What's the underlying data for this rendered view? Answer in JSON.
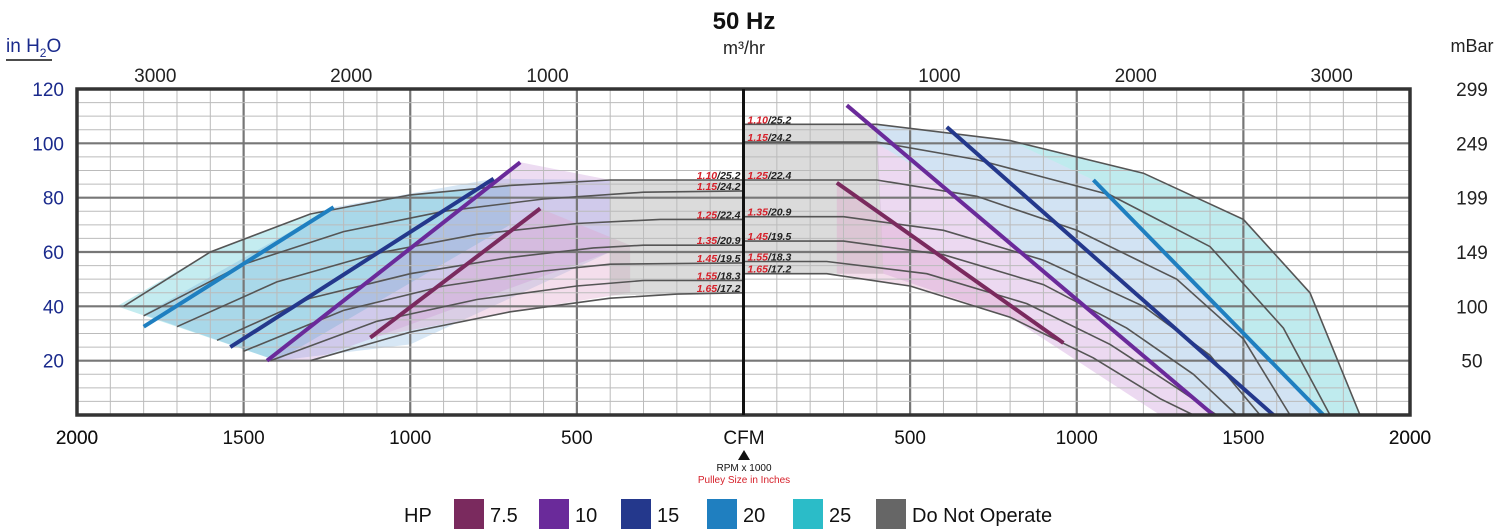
{
  "chart_data": {
    "type": "line",
    "title": "50 Hz",
    "top_axis_label": "m³/hr",
    "left_axis_label": {
      "main": "in H",
      "sub": "2",
      "tail": "O"
    },
    "right_axis_label": "mBar",
    "center_label": "CFM",
    "rpm_label": "RPM x 1000",
    "pulley_label": "Pulley Size in Inches",
    "bottom_ticks": [
      {
        "cfm": -2000,
        "label": "2000"
      },
      {
        "cfm": -1500,
        "label": "1500"
      },
      {
        "cfm": -1000,
        "label": "1000"
      },
      {
        "cfm": -500,
        "label": "500"
      },
      {
        "cfm": 500,
        "label": "500"
      },
      {
        "cfm": 1000,
        "label": "1000"
      },
      {
        "cfm": 1500,
        "label": "1500"
      },
      {
        "cfm": 2000,
        "label": "2000"
      }
    ],
    "top_ticks": [
      {
        "cfm": -1765,
        "label": "3000"
      },
      {
        "cfm": -1177,
        "label": "2000"
      },
      {
        "cfm": -588,
        "label": "1000"
      },
      {
        "cfm": 588,
        "label": "1000"
      },
      {
        "cfm": 1177,
        "label": "2000"
      },
      {
        "cfm": 1765,
        "label": "3000"
      }
    ],
    "left_ticks": [
      20,
      40,
      60,
      80,
      100,
      120
    ],
    "right_ticks": [
      {
        "in_h2o": 20,
        "label": "50"
      },
      {
        "in_h2o": 40,
        "label": "100"
      },
      {
        "in_h2o": 60,
        "label": "149"
      },
      {
        "in_h2o": 80,
        "label": "199"
      },
      {
        "in_h2o": 100,
        "label": "249"
      },
      {
        "in_h2o": 120,
        "label": "299"
      }
    ],
    "xlim": [
      -2000,
      2000
    ],
    "ylim": [
      0,
      120
    ],
    "grid": true,
    "legend_title": "HP",
    "legend": [
      {
        "label": "7.5",
        "color": "#7a2a5e"
      },
      {
        "label": "10",
        "color": "#6a2a9a"
      },
      {
        "label": "15",
        "color": "#24388c"
      },
      {
        "label": "20",
        "color": "#1f7fc0"
      },
      {
        "label": "25",
        "color": "#2bbcc8"
      },
      {
        "label": "Do Not Operate",
        "color": "#666666"
      }
    ],
    "left_labels": [
      {
        "pulley": "1.10",
        "rpm": "25.2",
        "y": 86.5
      },
      {
        "pulley": "1.15",
        "rpm": "24.2",
        "y": 82.5
      },
      {
        "pulley": "1.25",
        "rpm": "22.4",
        "y": 72.0
      },
      {
        "pulley": "1.35",
        "rpm": "20.9",
        "y": 62.5
      },
      {
        "pulley": "1.45",
        "rpm": "19.5",
        "y": 56.0
      },
      {
        "pulley": "1.55",
        "rpm": "18.3",
        "y": 49.5
      },
      {
        "pulley": "1.65",
        "rpm": "17.2",
        "y": 45.0
      }
    ],
    "right_labels": [
      {
        "pulley": "1.10",
        "rpm": "25.2",
        "y": 107.0
      },
      {
        "pulley": "1.15",
        "rpm": "24.2",
        "y": 100.5
      },
      {
        "pulley": "1.25",
        "rpm": "22.4",
        "y": 86.5
      },
      {
        "pulley": "1.35",
        "rpm": "20.9",
        "y": 73.0
      },
      {
        "pulley": "1.45",
        "rpm": "19.5",
        "y": 64.0
      },
      {
        "pulley": "1.55",
        "rpm": "18.3",
        "y": 56.5
      },
      {
        "pulley": "1.65",
        "rpm": "17.2",
        "y": 52.0
      }
    ],
    "left_curves": [
      [
        [
          -1860,
          40
        ],
        [
          -1600,
          60
        ],
        [
          -1300,
          74
        ],
        [
          -1000,
          81
        ],
        [
          -700,
          84.5
        ],
        [
          -400,
          86.5
        ],
        [
          0,
          86.5
        ]
      ],
      [
        [
          -1800,
          36.5
        ],
        [
          -1500,
          55.5
        ],
        [
          -1200,
          67.5
        ],
        [
          -900,
          75
        ],
        [
          -600,
          79.5
        ],
        [
          -300,
          82
        ],
        [
          0,
          82.5
        ]
      ],
      [
        [
          -1700,
          32.5
        ],
        [
          -1400,
          49
        ],
        [
          -1100,
          59.5
        ],
        [
          -800,
          66.5
        ],
        [
          -500,
          70.5
        ],
        [
          -250,
          72
        ],
        [
          0,
          72
        ]
      ],
      [
        [
          -1580,
          27.5
        ],
        [
          -1300,
          43
        ],
        [
          -1000,
          52
        ],
        [
          -700,
          58
        ],
        [
          -450,
          61.5
        ],
        [
          -300,
          62.5
        ],
        [
          0,
          62.5
        ]
      ],
      [
        [
          -1500,
          23.5
        ],
        [
          -1200,
          38.5
        ],
        [
          -900,
          47.5
        ],
        [
          -600,
          53
        ],
        [
          -400,
          55.5
        ],
        [
          0,
          56
        ]
      ],
      [
        [
          -1420,
          20
        ],
        [
          -1100,
          34.5
        ],
        [
          -800,
          42.5
        ],
        [
          -500,
          47.5
        ],
        [
          -300,
          49.5
        ],
        [
          0,
          49.5
        ]
      ],
      [
        [
          -1300,
          20
        ],
        [
          -1000,
          30.5
        ],
        [
          -700,
          38
        ],
        [
          -400,
          43
        ],
        [
          -200,
          44.5
        ],
        [
          0,
          45
        ]
      ]
    ],
    "right_curves": [
      [
        [
          0,
          107
        ],
        [
          400,
          107
        ],
        [
          800,
          101
        ],
        [
          1200,
          89
        ],
        [
          1500,
          72
        ],
        [
          1700,
          45
        ],
        [
          1850,
          0
        ]
      ],
      [
        [
          0,
          100.5
        ],
        [
          400,
          100.5
        ],
        [
          700,
          94
        ],
        [
          1100,
          81
        ],
        [
          1400,
          62
        ],
        [
          1620,
          32
        ],
        [
          1760,
          0
        ]
      ],
      [
        [
          0,
          86.5
        ],
        [
          400,
          86.5
        ],
        [
          700,
          80.5
        ],
        [
          1000,
          68
        ],
        [
          1300,
          50
        ],
        [
          1500,
          28
        ],
        [
          1640,
          0
        ]
      ],
      [
        [
          0,
          73
        ],
        [
          300,
          73
        ],
        [
          600,
          68
        ],
        [
          900,
          57
        ],
        [
          1200,
          40
        ],
        [
          1400,
          22
        ],
        [
          1550,
          0
        ]
      ],
      [
        [
          0,
          64
        ],
        [
          300,
          64
        ],
        [
          600,
          59
        ],
        [
          900,
          48
        ],
        [
          1150,
          32
        ],
        [
          1350,
          15
        ],
        [
          1480,
          0
        ]
      ],
      [
        [
          0,
          56.5
        ],
        [
          250,
          56.5
        ],
        [
          550,
          52
        ],
        [
          850,
          41
        ],
        [
          1100,
          26
        ],
        [
          1300,
          10
        ],
        [
          1420,
          0
        ]
      ],
      [
        [
          0,
          52
        ],
        [
          250,
          52
        ],
        [
          500,
          47.5
        ],
        [
          800,
          36
        ],
        [
          1050,
          21
        ],
        [
          1250,
          6
        ],
        [
          1350,
          0
        ]
      ]
    ],
    "hp_lines": [
      {
        "hp": "7.5",
        "color": "#7a2a5e",
        "points": [
          [
            -1120,
            28.5
          ],
          [
            -610,
            76
          ]
        ]
      },
      {
        "hp": "10",
        "color": "#6a2a9a",
        "points": [
          [
            -1430,
            20
          ],
          [
            -670,
            93
          ]
        ]
      },
      {
        "hp": "15",
        "color": "#24388c",
        "points": [
          [
            -1540,
            25
          ],
          [
            -750,
            87
          ]
        ]
      },
      {
        "hp": "20",
        "color": "#1f7fc0",
        "points": [
          [
            -1800,
            32.5
          ],
          [
            -1230,
            76.5
          ]
        ]
      },
      {
        "hp": "7.5",
        "color": "#7a2a5e",
        "points": [
          [
            280,
            85.5
          ],
          [
            960,
            26.5
          ]
        ]
      },
      {
        "hp": "10",
        "color": "#6a2a9a",
        "points": [
          [
            310,
            114
          ],
          [
            1410,
            0
          ]
        ]
      },
      {
        "hp": "15",
        "color": "#24388c",
        "points": [
          [
            610,
            106
          ],
          [
            1590,
            0
          ]
        ]
      },
      {
        "hp": "20",
        "color": "#1f7fc0",
        "points": [
          [
            1050,
            86.5
          ],
          [
            1740,
            0
          ]
        ]
      }
    ],
    "regions": [
      {
        "name": "25hp",
        "color": "#2bbcc8",
        "opacity": 0.28,
        "points": [
          [
            -1880,
            40
          ],
          [
            -1600,
            60
          ],
          [
            -1300,
            74
          ],
          [
            -1000,
            81
          ],
          [
            -700,
            84.5
          ],
          [
            -700,
            70
          ],
          [
            -1400,
            20
          ],
          [
            -1880,
            40
          ]
        ]
      },
      {
        "name": "20hp",
        "color": "#4a90d0",
        "opacity": 0.22,
        "points": [
          [
            -1800,
            37
          ],
          [
            -1230,
            76.5
          ],
          [
            -750,
            87
          ],
          [
            -400,
            86.5
          ],
          [
            -400,
            60
          ],
          [
            -1000,
            26
          ],
          [
            -1400,
            20
          ],
          [
            -1800,
            37
          ]
        ]
      },
      {
        "name": "10hp",
        "color": "#c080d0",
        "opacity": 0.28,
        "points": [
          [
            -1430,
            20
          ],
          [
            -670,
            93
          ],
          [
            -400,
            86.5
          ],
          [
            -400,
            60
          ],
          [
            -1300,
            20
          ],
          [
            -1430,
            20
          ]
        ]
      },
      {
        "name": "7.5hp",
        "color": "#e0a0c8",
        "opacity": 0.35,
        "points": [
          [
            -1120,
            28.5
          ],
          [
            -610,
            76
          ],
          [
            -340,
            62.5
          ],
          [
            -340,
            45
          ],
          [
            -700,
            38
          ],
          [
            -1120,
            28.5
          ]
        ]
      },
      {
        "name": "do-not-operate-left",
        "color": "#b0b0b0",
        "opacity": 0.45,
        "points": [
          [
            -400,
            86.5
          ],
          [
            0,
            86.5
          ],
          [
            0,
            45
          ],
          [
            -400,
            44
          ],
          [
            -400,
            86.5
          ]
        ]
      },
      {
        "name": "do-not-operate-right",
        "color": "#b0b0b0",
        "opacity": 0.45,
        "points": [
          [
            0,
            107
          ],
          [
            400,
            107
          ],
          [
            420,
            52
          ],
          [
            0,
            52
          ],
          [
            0,
            107
          ]
        ]
      },
      {
        "name": "25hp-right",
        "color": "#2bbcc8",
        "opacity": 0.3,
        "points": [
          [
            800,
            101
          ],
          [
            1200,
            89
          ],
          [
            1500,
            72
          ],
          [
            1700,
            45
          ],
          [
            1850,
            0
          ],
          [
            1740,
            0
          ],
          [
            1050,
            86.5
          ],
          [
            800,
            101
          ]
        ]
      },
      {
        "name": "15hp-right",
        "color": "#4a90d0",
        "opacity": 0.25,
        "points": [
          [
            400,
            107
          ],
          [
            800,
            101
          ],
          [
            1050,
            86.5
          ],
          [
            1740,
            0
          ],
          [
            1410,
            0
          ],
          [
            600,
            85
          ],
          [
            400,
            100
          ],
          [
            400,
            107
          ]
        ]
      },
      {
        "name": "10hp-right",
        "color": "#c080d0",
        "opacity": 0.3,
        "points": [
          [
            400,
            100
          ],
          [
            600,
            85
          ],
          [
            1410,
            0
          ],
          [
            1250,
            0
          ],
          [
            800,
            36
          ],
          [
            420,
            52
          ],
          [
            400,
            100
          ]
        ]
      },
      {
        "name": "7.5hp-right",
        "color": "#e0a0c8",
        "opacity": 0.35,
        "points": [
          [
            280,
            85.5
          ],
          [
            960,
            26.5
          ],
          [
            800,
            36
          ],
          [
            500,
            47.5
          ],
          [
            280,
            52
          ],
          [
            280,
            85.5
          ]
        ]
      }
    ]
  }
}
